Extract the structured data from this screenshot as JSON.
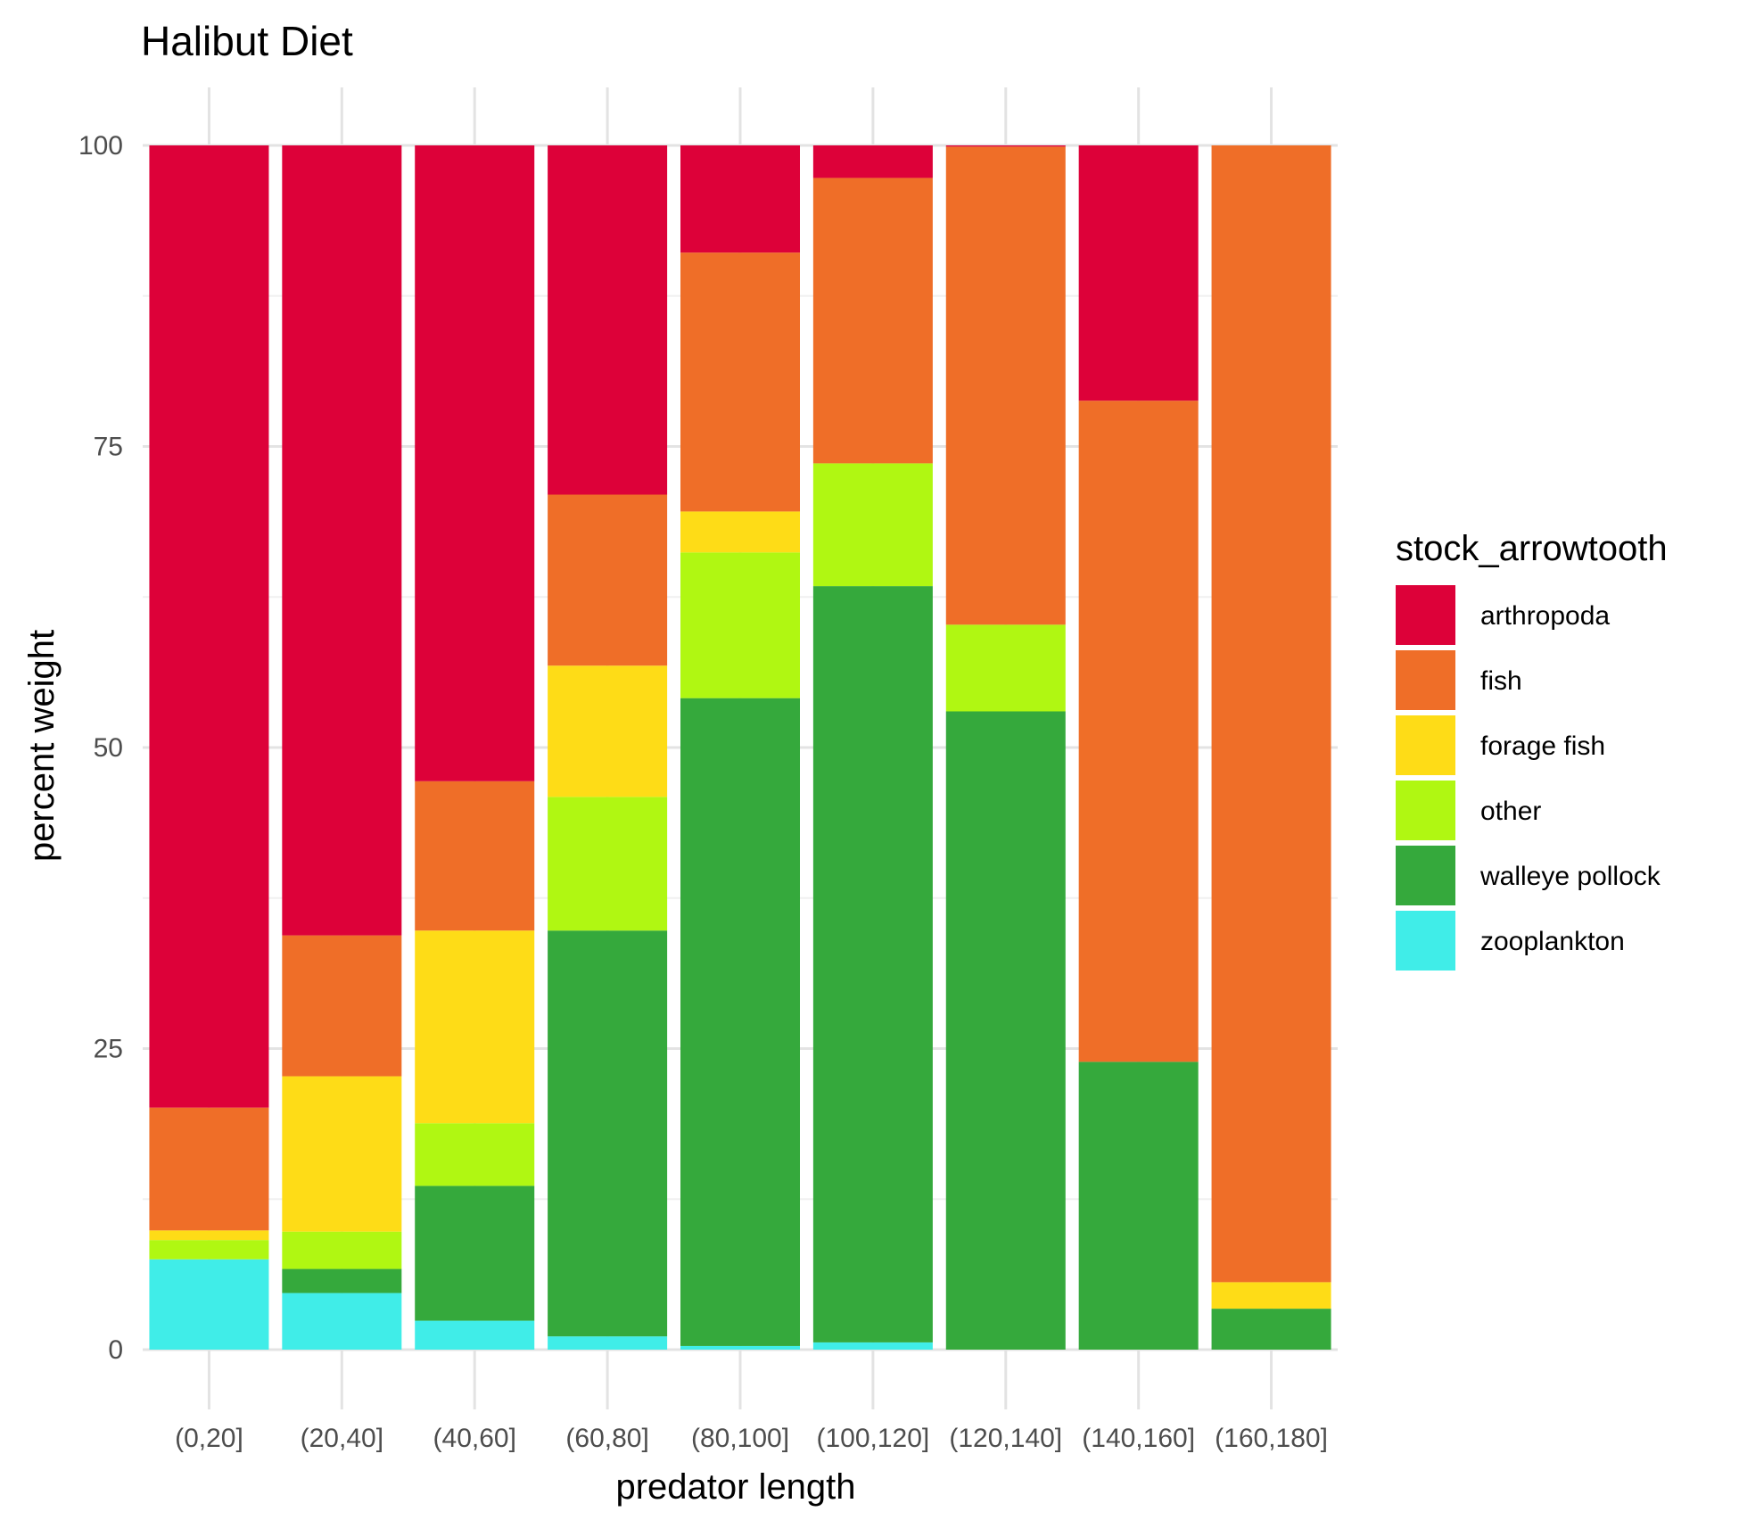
{
  "chart_data": {
    "type": "bar",
    "stacked": true,
    "title": "Halibut Diet",
    "xlabel": "predator length",
    "ylabel": "percent weight",
    "ylim": [
      0,
      100
    ],
    "yticks": [
      0,
      25,
      50,
      75,
      100
    ],
    "grid": true,
    "legend": {
      "title": "stock_arrowtooth",
      "position": "right"
    },
    "categories": [
      "(0,20]",
      "(20,40]",
      "(40,60]",
      "(60,80]",
      "(80,100]",
      "(100,120]",
      "(120,140]",
      "(140,160]",
      "(160,180]"
    ],
    "series": [
      {
        "name": "zooplankton",
        "color": "#40EDE8",
        "values": [
          7.5,
          4.7,
          2.4,
          1.1,
          0.3,
          0.6,
          0,
          0,
          0
        ]
      },
      {
        "name": "walleye pollock",
        "color": "#35A93C",
        "values": [
          0,
          2.0,
          11.2,
          33.7,
          53.8,
          62.8,
          53.0,
          23.9,
          3.4
        ]
      },
      {
        "name": "other",
        "color": "#B0F712",
        "values": [
          1.6,
          3.1,
          5.2,
          11.1,
          12.1,
          10.2,
          7.2,
          0,
          0
        ]
      },
      {
        "name": "forage fish",
        "color": "#FEDC17",
        "values": [
          0.8,
          12.9,
          16.0,
          10.9,
          3.4,
          0,
          0,
          0,
          2.2
        ]
      },
      {
        "name": "fish",
        "color": "#EF6E28",
        "values": [
          10.2,
          11.7,
          12.4,
          14.2,
          21.5,
          23.7,
          39.7,
          54.9,
          94.4
        ]
      },
      {
        "name": "arthropoda",
        "color": "#DD0139",
        "values": [
          79.9,
          65.6,
          52.8,
          29.0,
          8.9,
          2.7,
          0.1,
          21.2,
          0
        ]
      }
    ],
    "legend_order": [
      "arthropoda",
      "fish",
      "forage fish",
      "other",
      "walleye pollock",
      "zooplankton"
    ]
  }
}
